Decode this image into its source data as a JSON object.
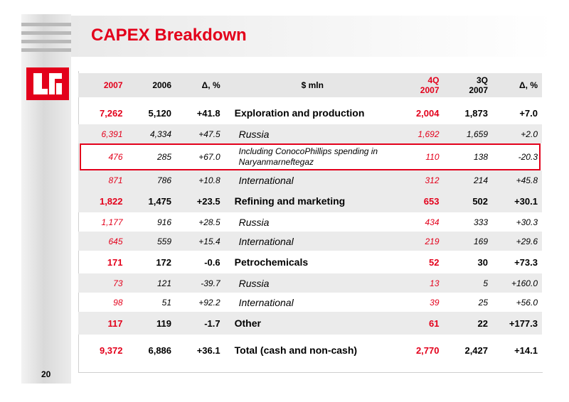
{
  "header": {
    "title": "CAPEX Breakdown"
  },
  "footer": {
    "page_number": "20"
  },
  "colors": {
    "accent": "#e3001b",
    "row_shade": "#ebebeb"
  },
  "table": {
    "headers": {
      "y2007": "2007",
      "y2006": "2006",
      "delta_year": "Δ, %",
      "unit": "$ mln",
      "q4_line1": "4Q",
      "q4_line2": "2007",
      "q3_line1": "3Q",
      "q3_line2": "2007",
      "delta_quarter": "Δ, %"
    },
    "rows": [
      {
        "type": "main",
        "y2007": "7,262",
        "y2006": "5,120",
        "dy": "+41.8",
        "label": "Exploration and production",
        "q4": "2,004",
        "q3": "1,873",
        "dq": "+7.0"
      },
      {
        "type": "sub",
        "y2007": "6,391",
        "y2006": "4,334",
        "dy": "+47.5",
        "label": "Russia",
        "q4": "1,692",
        "q3": "1,659",
        "dq": "+2.0"
      },
      {
        "type": "note",
        "y2007": "476",
        "y2006": "285",
        "dy": "+67.0",
        "label": "Including ConocoPhillips spending in Naryanmarneftegaz",
        "q4": "110",
        "q3": "138",
        "dq": "-20.3"
      },
      {
        "type": "sub",
        "y2007": "871",
        "y2006": "786",
        "dy": "+10.8",
        "label": "International",
        "q4": "312",
        "q3": "214",
        "dq": "+45.8"
      },
      {
        "type": "main",
        "y2007": "1,822",
        "y2006": "1,475",
        "dy": "+23.5",
        "label": "Refining and marketing",
        "q4": "653",
        "q3": "502",
        "dq": "+30.1"
      },
      {
        "type": "sub",
        "y2007": "1,177",
        "y2006": "916",
        "dy": "+28.5",
        "label": "Russia",
        "q4": "434",
        "q3": "333",
        "dq": "+30.3"
      },
      {
        "type": "sub",
        "y2007": "645",
        "y2006": "559",
        "dy": "+15.4",
        "label": "International",
        "q4": "219",
        "q3": "169",
        "dq": "+29.6"
      },
      {
        "type": "main",
        "y2007": "171",
        "y2006": "172",
        "dy": "-0.6",
        "label": "Petrochemicals",
        "q4": "52",
        "q3": "30",
        "dq": "+73.3"
      },
      {
        "type": "sub",
        "y2007": "73",
        "y2006": "121",
        "dy": "-39.7",
        "label": "Russia",
        "q4": "13",
        "q3": "5",
        "dq": "+160.0"
      },
      {
        "type": "sub",
        "y2007": "98",
        "y2006": "51",
        "dy": "+92.2",
        "label": "International",
        "q4": "39",
        "q3": "25",
        "dq": "+56.0"
      },
      {
        "type": "main",
        "y2007": "117",
        "y2006": "119",
        "dy": "-1.7",
        "label": "Other",
        "q4": "61",
        "q3": "22",
        "dq": "+177.3"
      },
      {
        "type": "main",
        "y2007": "9,372",
        "y2006": "6,886",
        "dy": "+36.1",
        "label": "Total (cash and non-cash)",
        "q4": "2,770",
        "q3": "2,427",
        "dq": "+14.1"
      }
    ]
  }
}
